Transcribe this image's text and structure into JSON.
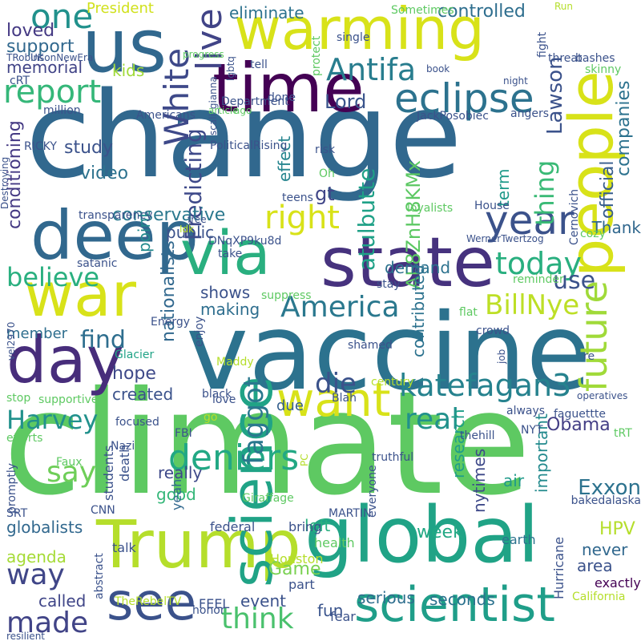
{
  "words": [
    {
      "t": "climate",
      "c": "#5ec962"
    },
    {
      "t": "change",
      "c": "#31688e"
    },
    {
      "t": "vaccine",
      "c": "#2c728e"
    },
    {
      "t": "warming",
      "c": "#d8e219"
    },
    {
      "t": "global",
      "c": "#20a386"
    },
    {
      "t": "state",
      "c": "#46327e"
    },
    {
      "t": "Trump",
      "c": "#b5de2b"
    },
    {
      "t": "us",
      "c": "#31688e"
    },
    {
      "t": "deep",
      "c": "#31688e"
    },
    {
      "t": "time",
      "c": "#440154"
    },
    {
      "t": "people",
      "c": "#d8e219"
    },
    {
      "t": "science",
      "c": "#20a386"
    },
    {
      "t": "via",
      "c": "#29af7f"
    },
    {
      "t": "war",
      "c": "#d8e219"
    },
    {
      "t": "day",
      "c": "#472d7b"
    },
    {
      "t": "scientist",
      "c": "#1f9e89"
    },
    {
      "t": "see",
      "c": "#3b528b"
    },
    {
      "t": "eclipse",
      "c": "#2c728e"
    },
    {
      "t": "want",
      "c": "#d8e219"
    },
    {
      "t": "katefagan3",
      "c": "#26828e"
    },
    {
      "t": "future",
      "c": "#a0da39"
    },
    {
      "t": "year",
      "c": "#3b528b"
    },
    {
      "t": "deniers",
      "c": "#22a884"
    },
    {
      "t": "right",
      "c": "#d8e219"
    },
    {
      "t": "Antifa",
      "c": "#287d8e"
    },
    {
      "t": "live",
      "c": "#414487"
    },
    {
      "t": "White",
      "c": "#3e4989"
    },
    {
      "t": "report",
      "c": "#35b779"
    },
    {
      "t": "one",
      "c": "#21918c"
    },
    {
      "t": "America",
      "c": "#2a788e"
    },
    {
      "t": "BillNye",
      "c": "#bddf26"
    },
    {
      "t": "think",
      "c": "#4ac16d"
    },
    {
      "t": "say",
      "c": "#6ece58"
    },
    {
      "t": "way",
      "c": "#404688"
    },
    {
      "t": "made",
      "c": "#414487"
    },
    {
      "t": "today",
      "c": "#29af7f"
    },
    {
      "t": "real",
      "c": "#21918c"
    },
    {
      "t": "die",
      "c": "#3b528b"
    },
    {
      "t": "faggot",
      "c": "#2a788e"
    },
    {
      "t": "Harvey",
      "c": "#21918c"
    },
    {
      "t": "believe",
      "c": "#29af7f"
    },
    {
      "t": "find",
      "c": "#2e6e8e"
    },
    {
      "t": "use",
      "c": "#3b528b"
    },
    {
      "t": "thing",
      "c": "#3aba76"
    },
    {
      "t": "Lawson",
      "c": "#3b528b"
    },
    {
      "t": "atulbutte",
      "c": "#1fa187"
    },
    {
      "t": "AF8ZnH8KMx",
      "c": "#5cc863"
    },
    {
      "t": "Predicting",
      "c": "#3e4989"
    },
    {
      "t": "conditioning",
      "c": "#443983"
    },
    {
      "t": "official",
      "c": "#365c8d"
    },
    {
      "t": "companies",
      "c": "#2c728e"
    },
    {
      "t": "Lord",
      "c": "#3a548c"
    },
    {
      "t": "controlled",
      "c": "#2e6e8e"
    },
    {
      "t": "eliminate",
      "c": "#2c728e"
    },
    {
      "t": "loved",
      "c": "#443983"
    },
    {
      "t": "support",
      "c": "#31688e"
    },
    {
      "t": "memorial",
      "c": "#414487"
    },
    {
      "t": "kids",
      "c": "#a0da39"
    },
    {
      "t": "President",
      "c": "#d0e11c"
    },
    {
      "t": "study",
      "c": "#3b528b"
    },
    {
      "t": "video",
      "c": "#2c728e"
    },
    {
      "t": "conservative",
      "c": "#2a788e"
    },
    {
      "t": "public",
      "c": "#3b528b"
    },
    {
      "t": "point",
      "c": "#238a8d"
    },
    {
      "t": "effect",
      "c": "#25848e"
    },
    {
      "t": "gt",
      "c": "#404688"
    },
    {
      "t": "term",
      "c": "#1f9a8a"
    },
    {
      "t": "Thank",
      "c": "#31688e"
    },
    {
      "t": "demand",
      "c": "#2c728e"
    },
    {
      "t": "nationalists",
      "c": "#31688e"
    },
    {
      "t": "shows",
      "c": "#3b528b"
    },
    {
      "t": "making",
      "c": "#2e6e8e"
    },
    {
      "t": "contributed",
      "c": "#2c728e"
    },
    {
      "t": "hope",
      "c": "#3e4989"
    },
    {
      "t": "created",
      "c": "#3b528b"
    },
    {
      "t": "member",
      "c": "#2e6e8e"
    },
    {
      "t": "due",
      "c": "#355f8d"
    },
    {
      "t": "important",
      "c": "#238a8d"
    },
    {
      "t": "research",
      "c": "#1f9e89"
    },
    {
      "t": "nytimes",
      "c": "#3e4989"
    },
    {
      "t": "Obama",
      "c": "#433e85"
    },
    {
      "t": "air",
      "c": "#1f9a8a"
    },
    {
      "t": "Exxon",
      "c": "#2c728e"
    },
    {
      "t": "HPV",
      "c": "#b5de2b"
    },
    {
      "t": "week",
      "c": "#22a884"
    },
    {
      "t": "left",
      "c": "#29af7f"
    },
    {
      "t": "globalists",
      "c": "#31688e"
    },
    {
      "t": "agenda",
      "c": "#a5db36"
    },
    {
      "t": "good",
      "c": "#35b779"
    },
    {
      "t": "really",
      "c": "#3e4989"
    },
    {
      "t": "Game",
      "c": "#7ad151"
    },
    {
      "t": "called",
      "c": "#404688"
    },
    {
      "t": "event",
      "c": "#3b528b"
    },
    {
      "t": "serious",
      "c": "#2e6e8e"
    },
    {
      "t": "seconds",
      "c": "#2c728e"
    },
    {
      "t": "never",
      "c": "#31688e"
    },
    {
      "t": "area",
      "c": "#3b528b"
    },
    {
      "t": "fun",
      "c": "#3a548c"
    },
    {
      "t": "talk",
      "c": "#3b528b"
    },
    {
      "t": "students",
      "c": "#3b528b"
    },
    {
      "t": "death",
      "c": "#3b528b"
    },
    {
      "t": "yeah",
      "c": "#31688e"
    },
    {
      "t": "federal",
      "c": "#3b528b"
    },
    {
      "t": "bring",
      "c": "#3b528b"
    },
    {
      "t": "health",
      "c": "#5ec962"
    },
    {
      "t": "Houston",
      "c": "#b5de2b"
    },
    {
      "t": "part",
      "c": "#3b528b"
    },
    {
      "t": "fear",
      "c": "#3b528b"
    },
    {
      "t": "earth",
      "c": "#2c728e"
    },
    {
      "t": "Hurricane",
      "c": "#3b528b"
    },
    {
      "t": "exactly",
      "c": "#440154"
    },
    {
      "t": "California",
      "c": "#b5de2b"
    },
    {
      "t": "honor",
      "c": "#3b528b"
    },
    {
      "t": "FEEL",
      "c": "#3b528b"
    },
    {
      "t": "TheRebelTV",
      "c": "#b5de2b"
    },
    {
      "t": "abstract",
      "c": "#3b528b"
    },
    {
      "t": "resilient",
      "c": "#3b528b"
    },
    {
      "t": "CNN",
      "c": "#3b528b"
    },
    {
      "t": "SRT",
      "c": "#3b528b"
    },
    {
      "t": "promptly",
      "c": "#3b528b"
    },
    {
      "t": "efforts",
      "c": "#5ec962"
    },
    {
      "t": "stop",
      "c": "#5ec962"
    },
    {
      "t": "supportive",
      "c": "#5ec962"
    },
    {
      "t": "vel2970",
      "c": "#3b528b"
    },
    {
      "t": "Faux",
      "c": "#5ec962"
    },
    {
      "t": "focused",
      "c": "#3b528b"
    },
    {
      "t": "Nazi",
      "c": "#3b528b"
    },
    {
      "t": "go",
      "c": "#b5de2b"
    },
    {
      "t": "FBI",
      "c": "#3b528b"
    },
    {
      "t": "black",
      "c": "#3b528b"
    },
    {
      "t": "love",
      "c": "#3b528b"
    },
    {
      "t": "century",
      "c": "#b5de2b"
    },
    {
      "t": "Blah",
      "c": "#3b528b"
    },
    {
      "t": "shamed",
      "c": "#3b528b"
    },
    {
      "t": "Maddy",
      "c": "#b5de2b"
    },
    {
      "t": "Glacier",
      "c": "#20a386"
    },
    {
      "t": "Energy",
      "c": "#3b528b"
    },
    {
      "t": "enjoy",
      "c": "#3b528b"
    },
    {
      "t": "suppress",
      "c": "#5ec962"
    },
    {
      "t": "stay",
      "c": "#3b528b"
    },
    {
      "t": "reminder",
      "c": "#5ec962"
    },
    {
      "t": "flat",
      "c": "#5ec962"
    },
    {
      "t": "crowd",
      "c": "#3b528b"
    },
    {
      "t": "job",
      "c": "#3b528b"
    },
    {
      "t": "re",
      "c": "#3b528b"
    },
    {
      "t": "always",
      "c": "#3b528b"
    },
    {
      "t": "faguettte",
      "c": "#3b528b"
    },
    {
      "t": "operatives",
      "c": "#3b528b"
    },
    {
      "t": "tRT",
      "c": "#5ec962"
    },
    {
      "t": "NYT",
      "c": "#3b528b"
    },
    {
      "t": "thehill",
      "c": "#3b528b"
    },
    {
      "t": "truthful",
      "c": "#3b528b"
    },
    {
      "t": "everyone",
      "c": "#3b528b"
    },
    {
      "t": "PC",
      "c": "#b5de2b"
    },
    {
      "t": "Giraffage",
      "c": "#5ec962"
    },
    {
      "t": "MARTIN",
      "c": "#3b528b"
    },
    {
      "t": "bakedalaska",
      "c": "#3b528b"
    },
    {
      "t": "take",
      "c": "#3b528b"
    },
    {
      "t": "satanic",
      "c": "#3b528b"
    },
    {
      "t": "transparency",
      "c": "#3b528b"
    },
    {
      "t": "free",
      "c": "#3b528b"
    },
    {
      "t": "Idk",
      "c": "#b5de2b"
    },
    {
      "t": "DNqXP9ku8d",
      "c": "#3b528b"
    },
    {
      "t": "WernerTwertzog",
      "c": "#3b528b"
    },
    {
      "t": "cozy",
      "c": "#5ec962"
    },
    {
      "t": "loyalists",
      "c": "#5ec962"
    },
    {
      "t": "House",
      "c": "#3b528b"
    },
    {
      "t": "Cernovich",
      "c": "#3b528b"
    },
    {
      "t": "teens",
      "c": "#3b528b"
    },
    {
      "t": "Oh",
      "c": "#5ec962"
    },
    {
      "t": "risk",
      "c": "#3b528b"
    },
    {
      "t": "RICKY",
      "c": "#3b528b"
    },
    {
      "t": "Destroying",
      "c": "#3b528b"
    },
    {
      "t": "PoliticalRising",
      "c": "#3b528b"
    },
    {
      "t": "angers",
      "c": "#3b528b"
    },
    {
      "t": "JackPosobiec",
      "c": "#3b528b"
    },
    {
      "t": "Americans",
      "c": "#3b528b"
    },
    {
      "t": "million",
      "c": "#3b528b"
    },
    {
      "t": "scali_gianna",
      "c": "#3b528b"
    },
    {
      "t": "Department",
      "c": "#3b528b"
    },
    {
      "t": "done",
      "c": "#3b528b"
    },
    {
      "t": "cRT",
      "c": "#3b528b"
    },
    {
      "t": "TRobinsonNewEra",
      "c": "#3b528b"
    },
    {
      "t": "UK",
      "c": "#3b528b"
    },
    {
      "t": "progress",
      "c": "#5ec962"
    },
    {
      "t": "tell",
      "c": "#3b528b"
    },
    {
      "t": "lgbtq",
      "c": "#3b528b"
    },
    {
      "t": "protect",
      "c": "#5ec962"
    },
    {
      "t": "single",
      "c": "#3b528b"
    },
    {
      "t": "book",
      "c": "#3b528b"
    },
    {
      "t": "Sometimes",
      "c": "#5ec962"
    },
    {
      "t": "fight",
      "c": "#3b528b"
    },
    {
      "t": "threat",
      "c": "#3b528b"
    },
    {
      "t": "Run",
      "c": "#b5de2b"
    },
    {
      "t": "bashes",
      "c": "#3b528b"
    },
    {
      "t": "skinny",
      "c": "#5ec962"
    },
    {
      "t": "night",
      "c": "#3b528b"
    },
    {
      "t": "article",
      "c": "#5ec962"
    },
    {
      "t": "ago",
      "c": "#5ec962"
    },
    {
      "t": "life",
      "c": "#3b528b"
    }
  ]
}
